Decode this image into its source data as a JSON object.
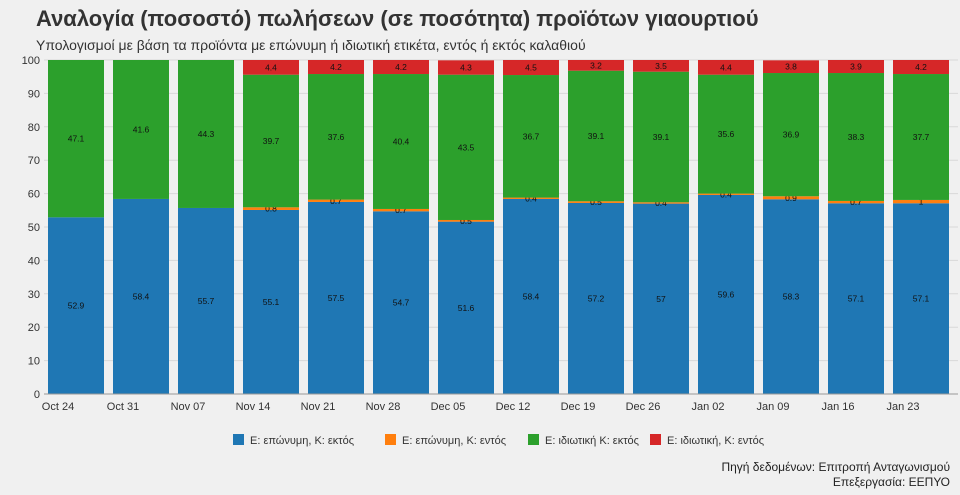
{
  "chart_data": {
    "type": "bar",
    "stacked": true,
    "title": "Αναλογία (ποσοστό) πωλήσεων (σε ποσότητα) προϊότων γιαουρτιού",
    "subtitle": "Υπολογισμοί με βάση τα προϊόντα με επώνυμη ή ιδιωτική ετικέτα, εντός ή εκτός καλαθιού",
    "xlabel": "",
    "ylabel": "",
    "ylim": [
      0,
      100
    ],
    "yticks": [
      0,
      10,
      20,
      30,
      40,
      50,
      60,
      70,
      80,
      90,
      100
    ],
    "grid": true,
    "legend_position": "bottom",
    "categories": [
      "Oct 24",
      "Oct 31",
      "Nov 07",
      "Nov 14",
      "Nov 21",
      "Nov 28",
      "Dec 05",
      "Dec 12",
      "Dec 19",
      "Dec 26",
      "Jan 02",
      "Jan 09",
      "Jan 16",
      "Jan 23"
    ],
    "series": [
      {
        "name": "Ε: επώνυμη, Κ: εκτός",
        "color": "#1f77b4",
        "values": [
          52.9,
          58.4,
          55.7,
          55.1,
          57.5,
          54.7,
          51.6,
          58.4,
          57.2,
          57,
          59.6,
          58.3,
          57.1,
          57.1
        ]
      },
      {
        "name": "Ε: επώνυμη, Κ: εντός",
        "color": "#ff7f0e",
        "values": [
          null,
          null,
          null,
          0.8,
          0.7,
          0.7,
          0.5,
          0.4,
          0.5,
          0.4,
          0.4,
          0.9,
          0.7,
          1
        ]
      },
      {
        "name": "Ε: ιδιωτική Κ: εκτός",
        "color": "#2ca02c",
        "values": [
          47.1,
          41.6,
          44.3,
          39.7,
          37.6,
          40.4,
          43.5,
          36.7,
          39.1,
          39.1,
          35.6,
          36.9,
          38.3,
          37.7
        ]
      },
      {
        "name": "Ε: ιδιωτική, Κ: εντός",
        "color": "#d62728",
        "values": [
          null,
          null,
          null,
          4.4,
          4.2,
          4.2,
          4.3,
          4.5,
          3.2,
          3.5,
          4.4,
          3.8,
          3.9,
          4.2
        ]
      }
    ]
  },
  "source": {
    "line1": "Πηγή δεδομένων: Επιτροπή Ανταγωνισμού",
    "line2": "Επεξεργασία: ΕΕΠΥΟ"
  }
}
